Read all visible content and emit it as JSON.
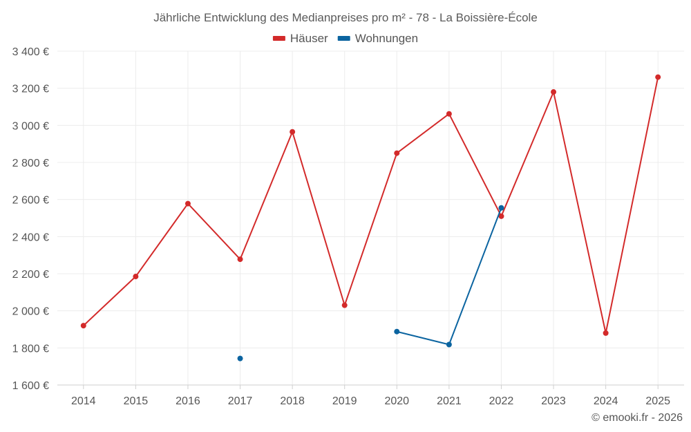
{
  "chart_data": {
    "type": "line",
    "title": "Jährliche Entwicklung des Medianpreises pro m² - 78 - La Boissière-École",
    "categories": [
      "2014",
      "2015",
      "2016",
      "2017",
      "2018",
      "2019",
      "2020",
      "2021",
      "2022",
      "2023",
      "2024",
      "2025"
    ],
    "ylim": [
      1600,
      3400
    ],
    "yticks": [
      1600,
      1800,
      2000,
      2200,
      2400,
      2600,
      2800,
      3000,
      3200,
      3400
    ],
    "ytick_labels": [
      "1 600 €",
      "1 800 €",
      "2 000 €",
      "2 200 €",
      "2 400 €",
      "2 600 €",
      "2 800 €",
      "3 000 €",
      "3 200 €",
      "3 400 €"
    ],
    "series": [
      {
        "name": "Häuser",
        "color": "#d32a2a",
        "values": [
          1920,
          2185,
          2578,
          2278,
          2965,
          2030,
          2850,
          3062,
          2510,
          3180,
          1880,
          3260
        ]
      },
      {
        "name": "Wohnungen",
        "color": "#0b64a0",
        "values": [
          null,
          null,
          null,
          1743,
          null,
          null,
          1888,
          1818,
          2555,
          null,
          null,
          null
        ]
      }
    ],
    "legend": "top-center",
    "grid": true
  },
  "credit": "© emooki.fr - 2026"
}
